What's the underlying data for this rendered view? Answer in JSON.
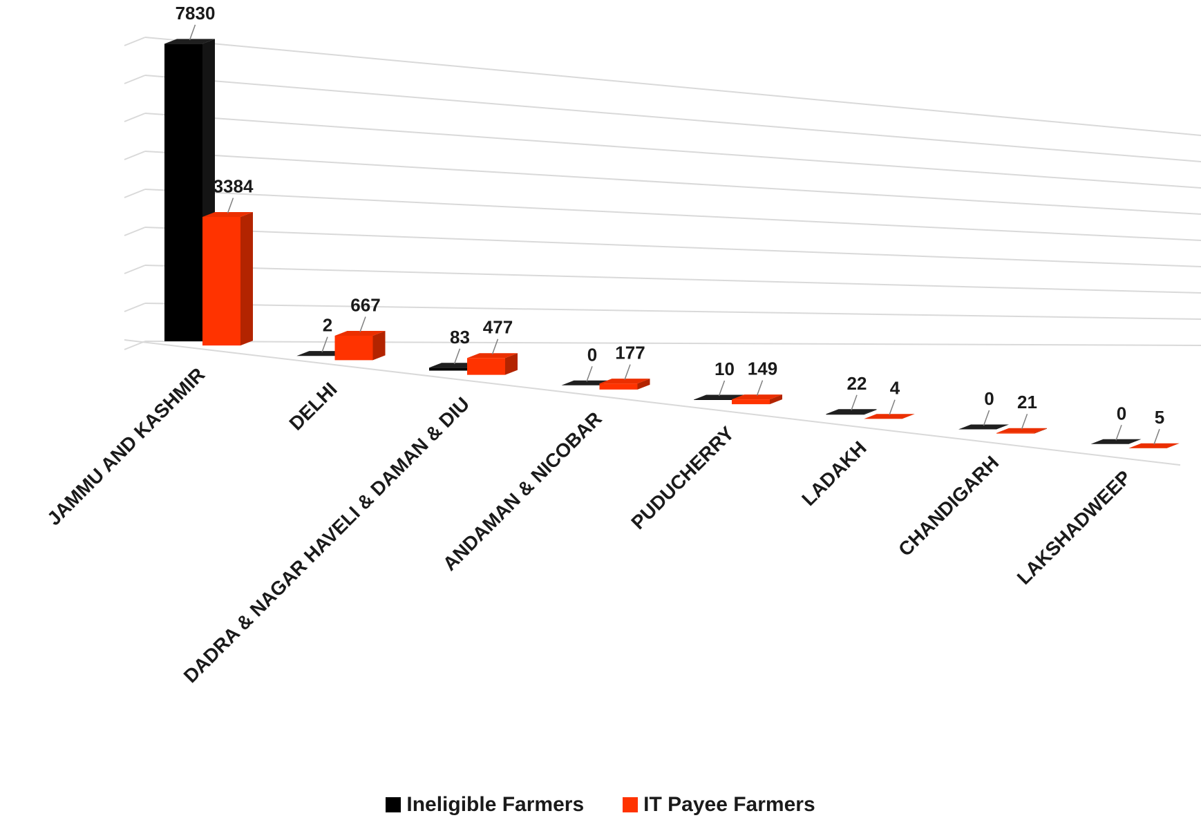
{
  "chart_data": {
    "type": "bar",
    "style": "3d-perspective",
    "categories": [
      "JAMMU AND KASHMIR",
      "DELHI",
      "DADRA & NAGAR HAVELI & DAMAN & DIU",
      "ANDAMAN & NICOBAR",
      "PUDUCHERRY",
      "LADAKH",
      "CHANDIGARH",
      "LAKSHADWEEP"
    ],
    "series": [
      {
        "name": "Ineligible Farmers",
        "color": "#000000",
        "values": [
          7830,
          2,
          83,
          0,
          10,
          22,
          0,
          0
        ]
      },
      {
        "name": "IT Payee Farmers",
        "color": "#ff3300",
        "values": [
          3384,
          667,
          477,
          177,
          149,
          4,
          21,
          5
        ]
      }
    ],
    "ylim": [
      0,
      8000
    ],
    "grid": true,
    "data_labels": true,
    "legend_position": "bottom"
  }
}
